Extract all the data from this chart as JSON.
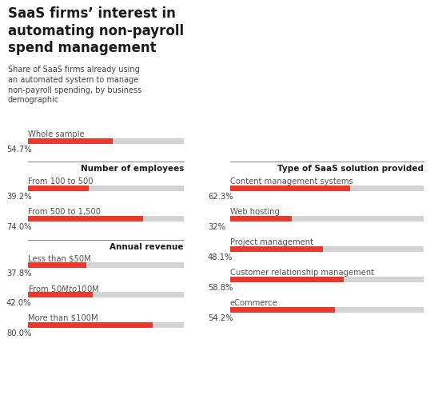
{
  "title": "SaaS firms’ interest in\nautomating non-payroll\nspend management",
  "subtitle": "Share of SaaS firms already using\nan automated system to manage\nnon-payroll spending, by business\ndemographic",
  "background_color": "#ffffff",
  "bar_color_active": "#e8392c",
  "bar_color_bg": "#d3d3d3",
  "left_panel": {
    "section_whole": {
      "label": "Whole sample",
      "value": 54.7,
      "pct_label": "54.7%"
    },
    "section_employees_title": "Number of employees",
    "employees": [
      {
        "label": "From 100 to 500",
        "value": 39.2,
        "pct_label": "39.2%"
      },
      {
        "label": "From 500 to 1,500",
        "value": 74.0,
        "pct_label": "74.0%"
      }
    ],
    "section_revenue_title": "Annual revenue",
    "revenue": [
      {
        "label": "Less than $50M",
        "value": 37.8,
        "pct_label": "37.8%"
      },
      {
        "label": "From $50M to $100M",
        "value": 42.0,
        "pct_label": "42.0%"
      },
      {
        "label": "More than $100M",
        "value": 80.0,
        "pct_label": "80.0%"
      }
    ]
  },
  "right_panel": {
    "section_saas_title": "Type of SaaS solution provided",
    "saas": [
      {
        "label": "Content management systems",
        "value": 62.3,
        "pct_label": "62.3%"
      },
      {
        "label": "Web hosting",
        "value": 32.0,
        "pct_label": "32%"
      },
      {
        "label": "Project management",
        "value": 48.1,
        "pct_label": "48.1%"
      },
      {
        "label": "Customer relationship management",
        "value": 58.8,
        "pct_label": "58.8%"
      },
      {
        "label": "eCommerce",
        "value": 54.2,
        "pct_label": "54.2%"
      }
    ]
  }
}
